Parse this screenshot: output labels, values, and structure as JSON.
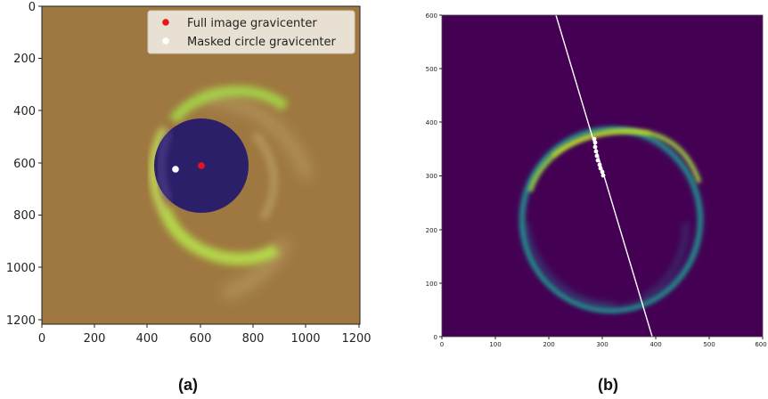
{
  "figure_a": {
    "caption": "(a)",
    "y_ticks": [
      "0",
      "200",
      "400",
      "600",
      "800",
      "1000",
      "1200"
    ],
    "x_ticks": [
      "0",
      "200",
      "400",
      "600",
      "800",
      "1000",
      "1200"
    ],
    "legend": [
      {
        "label": "Full image gravicenter",
        "color": "#e8141c"
      },
      {
        "label": "Masked circle gravicenter",
        "color": "#ffffff"
      }
    ],
    "colors": {
      "background": "#9e7840",
      "ring": "#7ec63a",
      "mask": "#2c1f6a"
    }
  },
  "figure_b": {
    "caption": "(b)",
    "y_ticks": [
      "600",
      "500",
      "400",
      "300",
      "200",
      "100",
      "0"
    ],
    "x_ticks": [
      "0",
      "100",
      "200",
      "300",
      "400",
      "500",
      "600"
    ],
    "colors": {
      "background": "#440154",
      "ring": "#5ec962",
      "line": "#ffffff",
      "points": "#ffffff"
    }
  }
}
